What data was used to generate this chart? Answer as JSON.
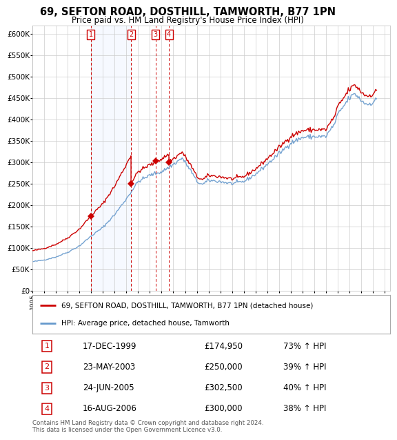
{
  "title": "69, SEFTON ROAD, DOSTHILL, TAMWORTH, B77 1PN",
  "subtitle": "Price paid vs. HM Land Registry's House Price Index (HPI)",
  "ylim": [
    0,
    620000
  ],
  "yticks": [
    0,
    50000,
    100000,
    150000,
    200000,
    250000,
    300000,
    350000,
    400000,
    450000,
    500000,
    550000,
    600000
  ],
  "xlim_start": 1995.0,
  "xlim_end": 2025.5,
  "bg_color": "#ffffff",
  "grid_color": "#cccccc",
  "sale_color": "#cc0000",
  "hpi_color": "#6699cc",
  "sale_label": "69, SEFTON ROAD, DOSTHILL, TAMWORTH, B77 1PN (detached house)",
  "hpi_label": "HPI: Average price, detached house, Tamworth",
  "transactions": [
    {
      "num": 1,
      "date_str": "17-DEC-1999",
      "date_dec": 1999.96,
      "price": 174950,
      "pct": "73%",
      "dir": "↑"
    },
    {
      "num": 2,
      "date_str": "23-MAY-2003",
      "date_dec": 2003.39,
      "price": 250000,
      "pct": "39%",
      "dir": "↑"
    },
    {
      "num": 3,
      "date_str": "24-JUN-2005",
      "date_dec": 2005.48,
      "price": 302500,
      "pct": "40%",
      "dir": "↑"
    },
    {
      "num": 4,
      "date_str": "16-AUG-2006",
      "date_dec": 2006.62,
      "price": 300000,
      "pct": "38%",
      "dir": "↑"
    }
  ],
  "footer": "Contains HM Land Registry data © Crown copyright and database right 2024.\nThis data is licensed under the Open Government Licence v3.0."
}
